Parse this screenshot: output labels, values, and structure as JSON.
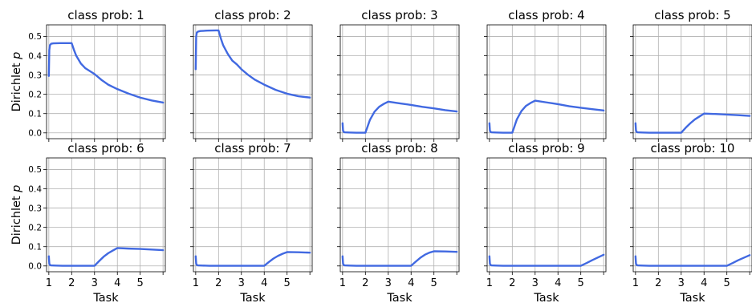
{
  "chart_data": [
    {
      "type": "line",
      "title": "class prob: 1",
      "xlabel": "",
      "ylabel": "Dirichlet p",
      "xlim": [
        0.9,
        6.1
      ],
      "ylim": [
        -0.03,
        0.56
      ],
      "x": [
        1.0,
        1.02,
        1.05,
        1.1,
        1.2,
        1.5,
        1.9,
        2.0,
        2.1,
        2.2,
        2.4,
        2.6,
        2.8,
        3.0,
        3.3,
        3.6,
        4.0,
        4.5,
        5.0,
        5.5,
        6.0
      ],
      "series": [
        {
          "values": [
            0.295,
            0.43,
            0.455,
            0.462,
            0.464,
            0.465,
            0.465,
            0.465,
            0.43,
            0.4,
            0.36,
            0.335,
            0.32,
            0.305,
            0.275,
            0.25,
            0.227,
            0.203,
            0.183,
            0.168,
            0.157
          ]
        }
      ]
    },
    {
      "type": "line",
      "title": "class prob: 2",
      "xlabel": "",
      "ylabel": "",
      "xlim": [
        0.9,
        6.1
      ],
      "ylim": [
        -0.03,
        0.56
      ],
      "x": [
        1.0,
        1.02,
        1.05,
        1.1,
        1.2,
        1.5,
        1.9,
        2.0,
        2.1,
        2.2,
        2.4,
        2.6,
        2.8,
        3.0,
        3.3,
        3.6,
        4.0,
        4.5,
        5.0,
        5.5,
        6.0
      ],
      "series": [
        {
          "values": [
            0.33,
            0.5,
            0.52,
            0.525,
            0.528,
            0.53,
            0.531,
            0.531,
            0.49,
            0.455,
            0.41,
            0.375,
            0.355,
            0.33,
            0.3,
            0.275,
            0.25,
            0.223,
            0.203,
            0.19,
            0.183
          ]
        }
      ]
    },
    {
      "type": "line",
      "title": "class prob: 3",
      "xlabel": "",
      "ylabel": "",
      "xlim": [
        0.9,
        6.1
      ],
      "ylim": [
        -0.03,
        0.56
      ],
      "x": [
        1.0,
        1.02,
        1.05,
        1.1,
        1.3,
        1.6,
        2.0,
        2.2,
        2.4,
        2.6,
        2.8,
        3.0,
        3.5,
        4.0,
        4.5,
        5.0,
        5.5,
        6.0
      ],
      "series": [
        {
          "values": [
            0.05,
            0.012,
            0.005,
            0.003,
            0.002,
            0.001,
            0.001,
            0.068,
            0.11,
            0.135,
            0.15,
            0.162,
            0.153,
            0.145,
            0.135,
            0.127,
            0.118,
            0.111
          ]
        }
      ]
    },
    {
      "type": "line",
      "title": "class prob: 4",
      "xlabel": "",
      "ylabel": "",
      "xlim": [
        0.9,
        6.1
      ],
      "ylim": [
        -0.03,
        0.56
      ],
      "x": [
        1.0,
        1.02,
        1.05,
        1.1,
        1.3,
        1.6,
        2.0,
        2.2,
        2.4,
        2.6,
        2.8,
        3.0,
        3.5,
        4.0,
        4.5,
        5.0,
        5.5,
        6.0
      ],
      "series": [
        {
          "values": [
            0.05,
            0.012,
            0.005,
            0.003,
            0.002,
            0.001,
            0.001,
            0.07,
            0.113,
            0.14,
            0.155,
            0.167,
            0.158,
            0.149,
            0.138,
            0.13,
            0.123,
            0.116
          ]
        }
      ]
    },
    {
      "type": "line",
      "title": "class prob: 5",
      "xlabel": "",
      "ylabel": "",
      "xlim": [
        0.9,
        6.1
      ],
      "ylim": [
        -0.03,
        0.56
      ],
      "x": [
        1.0,
        1.02,
        1.05,
        1.1,
        1.3,
        1.6,
        2.0,
        2.5,
        3.0,
        3.2,
        3.4,
        3.6,
        3.8,
        4.0,
        4.5,
        5.0,
        5.5,
        6.0
      ],
      "series": [
        {
          "values": [
            0.05,
            0.012,
            0.005,
            0.003,
            0.002,
            0.001,
            0.001,
            0.001,
            0.001,
            0.027,
            0.05,
            0.07,
            0.085,
            0.1,
            0.098,
            0.095,
            0.092,
            0.088
          ]
        }
      ]
    },
    {
      "type": "line",
      "title": "class prob: 6",
      "xlabel": "Task",
      "ylabel": "Dirichlet p",
      "xlim": [
        0.9,
        6.1
      ],
      "ylim": [
        -0.03,
        0.56
      ],
      "x": [
        1.0,
        1.02,
        1.05,
        1.1,
        1.3,
        1.6,
        2.0,
        2.5,
        3.0,
        3.2,
        3.4,
        3.6,
        3.8,
        4.0,
        4.5,
        5.0,
        5.5,
        6.0
      ],
      "series": [
        {
          "values": [
            0.05,
            0.012,
            0.005,
            0.003,
            0.002,
            0.001,
            0.001,
            0.001,
            0.001,
            0.025,
            0.048,
            0.066,
            0.08,
            0.093,
            0.09,
            0.088,
            0.085,
            0.082
          ]
        }
      ]
    },
    {
      "type": "line",
      "title": "class prob: 7",
      "xlabel": "Task",
      "ylabel": "",
      "xlim": [
        0.9,
        6.1
      ],
      "ylim": [
        -0.03,
        0.56
      ],
      "x": [
        1.0,
        1.02,
        1.05,
        1.1,
        1.3,
        1.6,
        2.0,
        2.5,
        3.0,
        3.5,
        4.0,
        4.2,
        4.4,
        4.6,
        4.8,
        5.0,
        5.5,
        6.0
      ],
      "series": [
        {
          "values": [
            0.05,
            0.012,
            0.005,
            0.003,
            0.002,
            0.001,
            0.001,
            0.001,
            0.001,
            0.001,
            0.001,
            0.02,
            0.038,
            0.052,
            0.063,
            0.072,
            0.071,
            0.069
          ]
        }
      ]
    },
    {
      "type": "line",
      "title": "class prob: 8",
      "xlabel": "Task",
      "ylabel": "",
      "xlim": [
        0.9,
        6.1
      ],
      "ylim": [
        -0.03,
        0.56
      ],
      "x": [
        1.0,
        1.02,
        1.05,
        1.1,
        1.3,
        1.6,
        2.0,
        2.5,
        3.0,
        3.5,
        4.0,
        4.2,
        4.4,
        4.6,
        4.8,
        5.0,
        5.5,
        6.0
      ],
      "series": [
        {
          "values": [
            0.05,
            0.012,
            0.005,
            0.003,
            0.002,
            0.001,
            0.001,
            0.001,
            0.001,
            0.001,
            0.001,
            0.022,
            0.042,
            0.058,
            0.069,
            0.076,
            0.075,
            0.073
          ]
        }
      ]
    },
    {
      "type": "line",
      "title": "class prob: 9",
      "xlabel": "Task",
      "ylabel": "",
      "xlim": [
        0.9,
        6.1
      ],
      "ylim": [
        -0.03,
        0.56
      ],
      "x": [
        1.0,
        1.02,
        1.05,
        1.1,
        1.3,
        1.6,
        2.0,
        3.0,
        4.0,
        5.0,
        5.25,
        5.5,
        5.75,
        6.0
      ],
      "series": [
        {
          "values": [
            0.05,
            0.012,
            0.005,
            0.003,
            0.002,
            0.001,
            0.001,
            0.001,
            0.001,
            0.001,
            0.015,
            0.03,
            0.044,
            0.058
          ]
        }
      ]
    },
    {
      "type": "line",
      "title": "class prob: 10",
      "xlabel": "Task",
      "ylabel": "",
      "xlim": [
        0.9,
        6.1
      ],
      "ylim": [
        -0.03,
        0.56
      ],
      "x": [
        1.0,
        1.02,
        1.05,
        1.1,
        1.3,
        1.6,
        2.0,
        3.0,
        4.0,
        5.0,
        5.25,
        5.5,
        5.75,
        6.0
      ],
      "series": [
        {
          "values": [
            0.05,
            0.012,
            0.005,
            0.003,
            0.002,
            0.001,
            0.001,
            0.001,
            0.001,
            0.001,
            0.015,
            0.03,
            0.043,
            0.056
          ]
        }
      ]
    }
  ],
  "axes": {
    "y_ticks": [
      0.0,
      0.1,
      0.2,
      0.3,
      0.4,
      0.5
    ],
    "y_tick_labels": [
      "0.0",
      "0.1",
      "0.2",
      "0.3",
      "0.4",
      "0.5"
    ],
    "x_ticks": [
      1,
      2,
      3,
      4,
      5,
      6
    ],
    "x_tick_labels": [
      "1",
      "2",
      "3",
      "4",
      "5",
      ""
    ],
    "grid": true,
    "line_color": "#4169e1",
    "grid_color": "#b0b0b0"
  }
}
